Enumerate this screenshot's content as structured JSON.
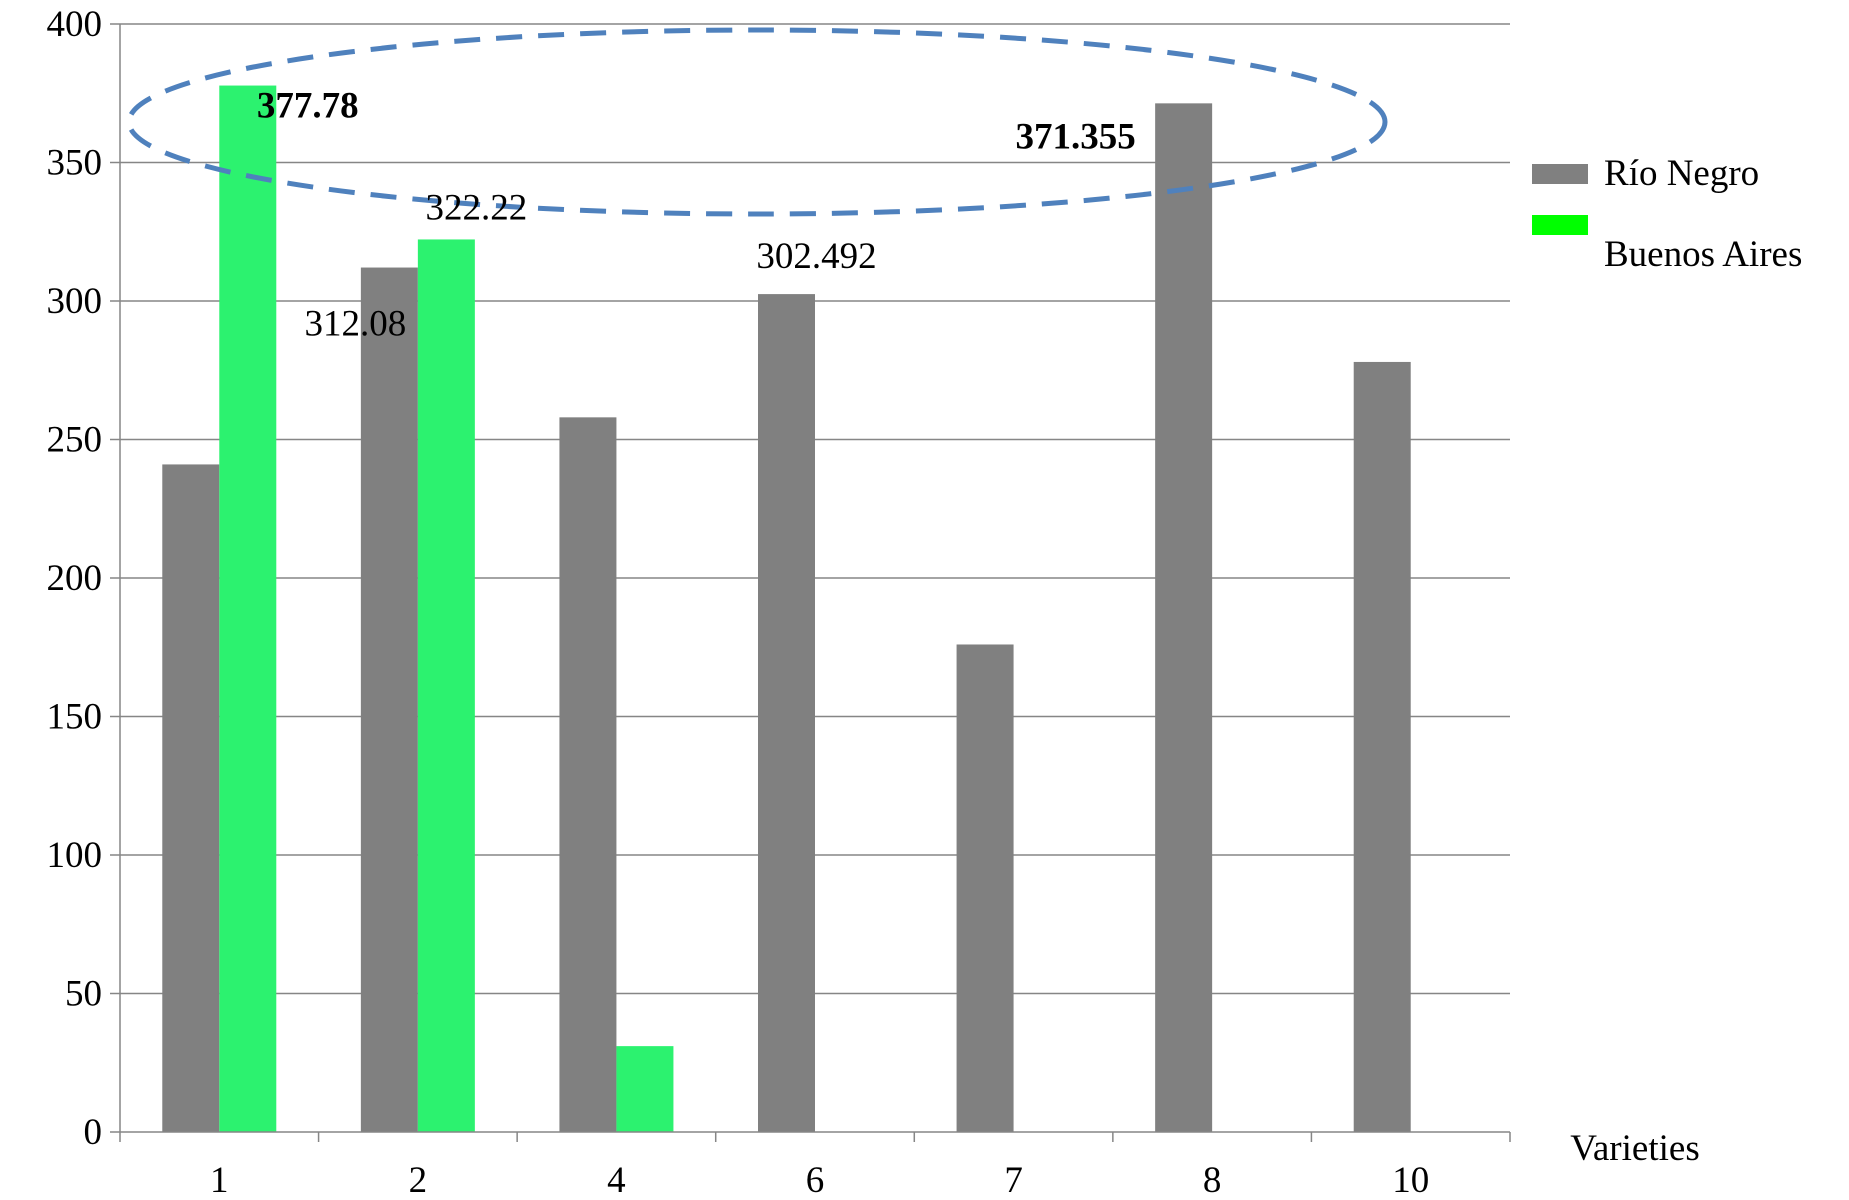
{
  "chart_data": {
    "type": "bar",
    "title": "",
    "xlabel": "Varieties",
    "ylabel": "",
    "categories": [
      "1",
      "2",
      "4",
      "6",
      "7",
      "8",
      "10"
    ],
    "series": [
      {
        "name": "Río Negro",
        "color": "#808080",
        "values": [
          241,
          312.08,
          258,
          302.492,
          176,
          371.355,
          278
        ]
      },
      {
        "name": "Buenos Aires",
        "color": "#2cf26f",
        "values": [
          377.78,
          322.22,
          31,
          null,
          null,
          null,
          null
        ]
      }
    ],
    "ylim": [
      0,
      400
    ],
    "yticks": [
      0,
      50,
      100,
      150,
      200,
      250,
      300,
      350,
      400
    ],
    "grid": true,
    "legend_position": "right",
    "legend_swatch_colors": [
      "#808080",
      "#00ff00"
    ],
    "data_labels": [
      {
        "series": 1,
        "category": "1",
        "text": "377.78",
        "bold": true
      },
      {
        "series": 1,
        "category": "2",
        "text": "322.22",
        "bold": false
      },
      {
        "series": 0,
        "category": "2",
        "text": "312.08",
        "bold": false
      },
      {
        "series": 0,
        "category": "6",
        "text": "302.492",
        "bold": false
      },
      {
        "series": 0,
        "category": "8",
        "text": "371.355",
        "bold": true
      }
    ],
    "annotation": {
      "shape": "dashed-ellipse",
      "color": "#4f81bd",
      "highlights": [
        "377.78",
        "371.355"
      ]
    }
  }
}
